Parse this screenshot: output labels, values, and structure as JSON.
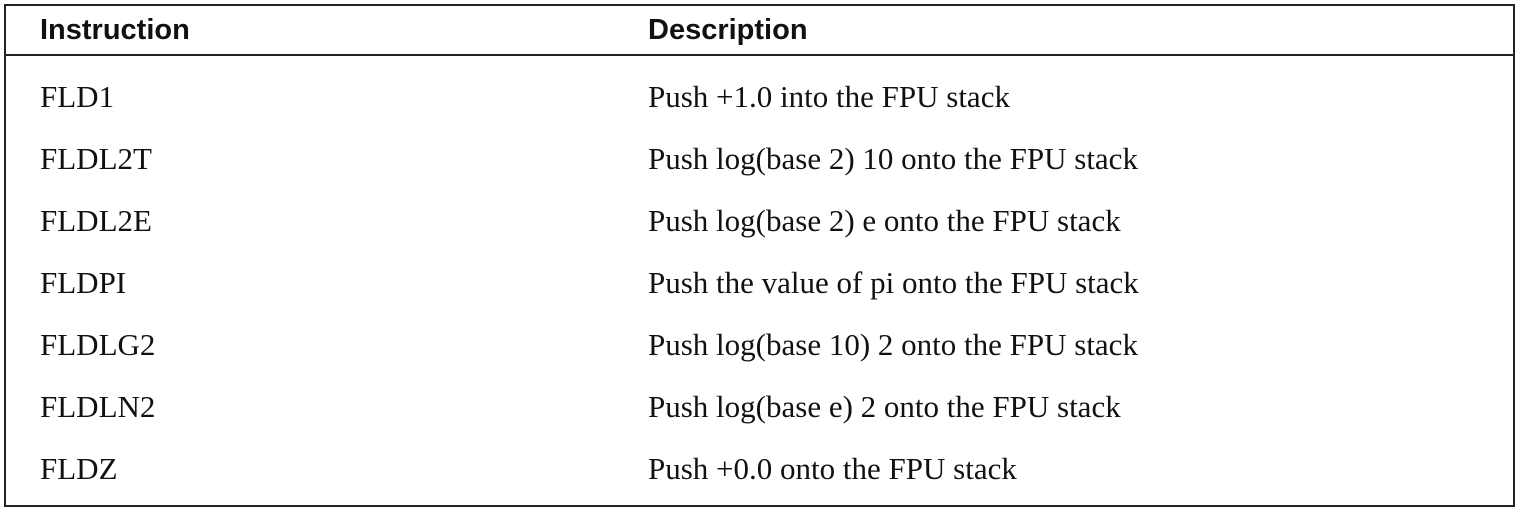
{
  "table": {
    "headers": {
      "instruction": "Instruction",
      "description": "Description"
    },
    "rows": [
      {
        "instruction": "FLD1",
        "description": "Push +1.0 into the FPU stack"
      },
      {
        "instruction": "FLDL2T",
        "description": "Push log(base 2) 10 onto the FPU stack"
      },
      {
        "instruction": "FLDL2E",
        "description": "Push log(base 2) e onto the FPU stack"
      },
      {
        "instruction": "FLDPI",
        "description": "Push the value of pi onto the FPU stack"
      },
      {
        "instruction": "FLDLG2",
        "description": "Push log(base 10) 2 onto the FPU stack"
      },
      {
        "instruction": "FLDLN2",
        "description": "Push log(base e) 2 onto the FPU stack"
      },
      {
        "instruction": "FLDZ",
        "description": "Push +0.0 onto the FPU stack"
      }
    ]
  }
}
